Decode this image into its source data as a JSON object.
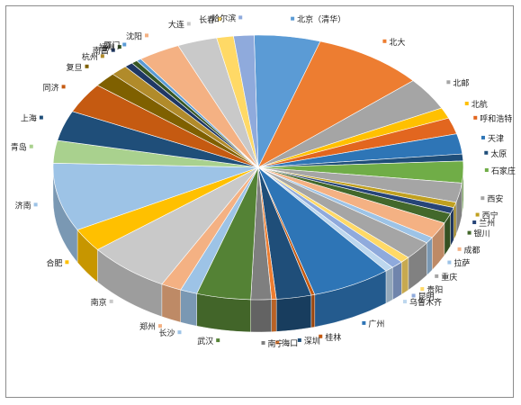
{
  "chart_data": {
    "type": "pie",
    "title": "",
    "categories": [
      "北京（清华）",
      "北大",
      "北邮",
      "北航",
      "呼和浩特",
      "天津",
      "太原",
      "石家庄",
      "西安",
      "西宁",
      "兰州",
      "银川",
      "成都",
      "拉萨",
      "重庆",
      "贵阳",
      "昆明",
      "乌鲁木齐",
      "广州",
      "桂林",
      "深圳",
      "海口",
      "南宁",
      "武汉",
      "长沙",
      "郑州",
      "南京",
      "合肥",
      "济南",
      "青岛",
      "上海",
      "同济",
      "复旦",
      "杭州",
      "南昌",
      "福州",
      "厦门",
      "沈阳",
      "大连",
      "长春",
      "哈尔滨"
    ],
    "values": [
      5.5,
      9.2,
      4.2,
      1.4,
      2.1,
      2.6,
      0.9,
      2.8,
      2.5,
      0.7,
      0.8,
      1.3,
      2.1,
      0.8,
      2.4,
      0.8,
      1.0,
      0.7,
      6.6,
      0.3,
      2.9,
      0.4,
      1.7,
      4.5,
      1.4,
      1.7,
      6.9,
      3.0,
      8.8,
      2.9,
      3.9,
      3.9,
      1.9,
      1.4,
      0.7,
      0.5,
      0.4,
      3.5,
      3.3,
      1.4,
      1.7
    ],
    "colors": [
      "#5b9bd5",
      "#ed7d31",
      "#a5a5a5",
      "#ffc000",
      "#e2661f",
      "#2e75b6",
      "#1f4e79",
      "#70ad47",
      "#a5a5a5",
      "#c0a020",
      "#264478",
      "#43682b",
      "#f4b183",
      "#9dc3e6",
      "#a5a5a5",
      "#ffd966",
      "#8faadc",
      "#bdd7ee",
      "#2e75b6",
      "#c55a11",
      "#1f4e79",
      "#ed7d31",
      "#7f7f7f",
      "#548235",
      "#9dc3e6",
      "#f4b183",
      "#c9c9c9",
      "#ffc000",
      "#9dc3e6",
      "#a9d18e",
      "#1f4e79",
      "#c55a11",
      "#7f6000",
      "#b18b2a",
      "#1f3864",
      "#375623",
      "#5b9bd5",
      "#f4b183",
      "#c9c9c9",
      "#ffd966",
      "#8faadc"
    ],
    "legend": "none"
  }
}
